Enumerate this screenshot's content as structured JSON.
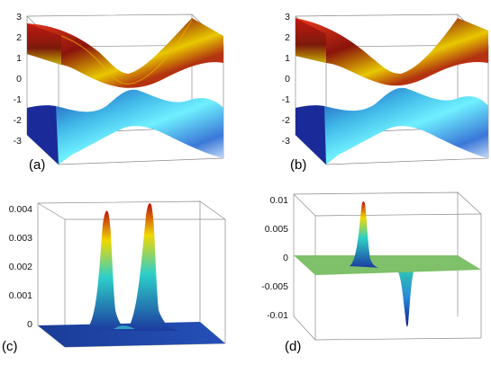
{
  "chart_data": [
    {
      "type": "surface",
      "panel_label": "(a)",
      "z_ticks": [
        "3",
        "2",
        "1",
        "0",
        "-1",
        "-2",
        "-3"
      ],
      "zlim": [
        -3,
        3
      ],
      "surfaces": [
        "upper band (red-yellow)",
        "lower band (cyan-blue)"
      ]
    },
    {
      "type": "surface",
      "panel_label": "(b)",
      "z_ticks": [
        "3",
        "2",
        "1",
        "0",
        "-1",
        "-2",
        "-3"
      ],
      "zlim": [
        -3,
        3
      ],
      "surfaces": [
        "upper band (red-yellow)",
        "lower band (cyan-blue)"
      ]
    },
    {
      "type": "surface",
      "panel_label": "(c)",
      "z_ticks": [
        "0.004",
        "0.003",
        "0.002",
        "0.001",
        "0"
      ],
      "zlim": [
        0,
        0.0042
      ],
      "peaks": [
        0.0041,
        0.0042
      ]
    },
    {
      "type": "surface",
      "panel_label": "(d)",
      "z_ticks": [
        "0.01",
        "0.005",
        "0",
        "-0.005",
        "-0.01"
      ],
      "zlim": [
        -0.012,
        0.012
      ],
      "peaks": [
        0.011,
        -0.0115
      ]
    }
  ],
  "colors": {
    "red": "#d21a10",
    "yellow": "#f2e000",
    "cyan": "#33e0f0",
    "blue": "#1030a8",
    "green": "#7fc06a",
    "navy": "#1d3f9a"
  }
}
